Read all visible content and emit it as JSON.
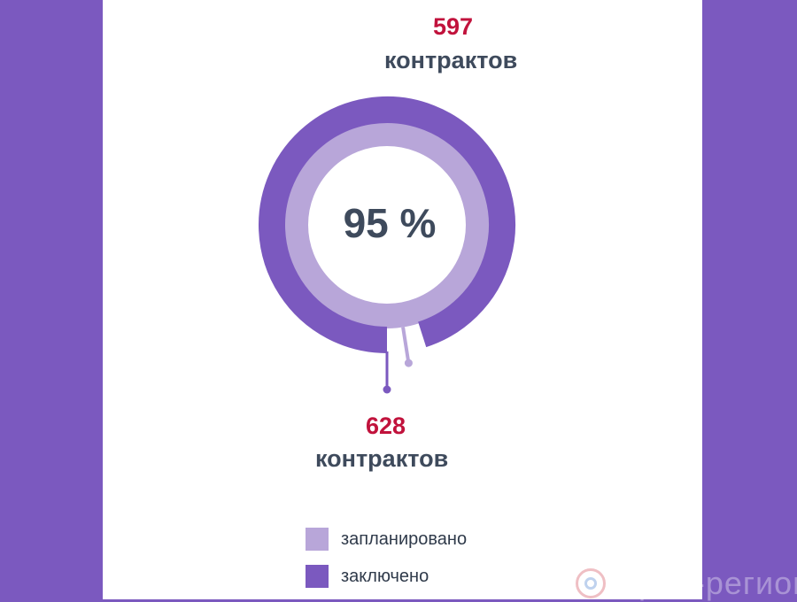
{
  "chart_data": {
    "type": "pie",
    "series": [
      {
        "name": "запланировано",
        "value": 628,
        "ring": "inner"
      },
      {
        "name": "заключено",
        "value": 597,
        "ring": "outer"
      }
    ],
    "center_label": "95 %",
    "legend_position": "bottom",
    "colors": {
      "planned": "#b8a6d9",
      "concluded": "#7b59bf",
      "gap": "#ffffff"
    }
  },
  "callouts": {
    "top": {
      "value": "597",
      "unit": "контрактов"
    },
    "bottom": {
      "value": "628",
      "unit": "контрактов"
    }
  },
  "legend": {
    "planned_label": "запланировано",
    "concluded_label": "заключено"
  },
  "watermark": {
    "text": "Орел-регион"
  }
}
